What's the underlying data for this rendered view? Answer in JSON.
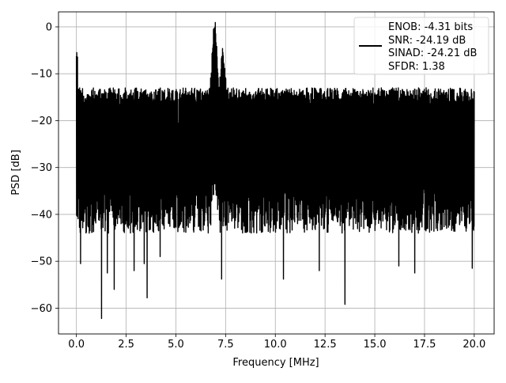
{
  "chart_data": {
    "type": "line",
    "title": "",
    "xlabel": "Frequency [MHz]",
    "ylabel": "PSD [dB]",
    "xlim": [
      -0.9,
      21.0
    ],
    "ylim": [
      -65.5,
      3.2
    ],
    "xticks": [
      0.0,
      2.5,
      5.0,
      7.5,
      10.0,
      12.5,
      15.0,
      17.5,
      20.0
    ],
    "xtick_labels": [
      "0.0",
      "2.5",
      "5.0",
      "7.5",
      "10.0",
      "12.5",
      "15.0",
      "17.5",
      "20.0"
    ],
    "yticks": [
      0,
      -10,
      -20,
      -30,
      -40,
      -50,
      -60
    ],
    "ytick_labels": [
      "0",
      "−10",
      "−20",
      "−30",
      "−40",
      "−50",
      "−60"
    ],
    "grid": true,
    "legend_placement": "upper-right",
    "legend_lines": [
      "ENOB: -4.31 bits",
      "SNR: -24.19 dB",
      "SINAD: -24.21 dB",
      "SFDR: 1.38"
    ],
    "series_color": "#000000",
    "noise_floor_upper_db": -13,
    "noise_floor_lower_db": -42,
    "peak": {
      "frequency_mhz": 6.95,
      "psd_db": 0.0
    },
    "spur": {
      "frequency_mhz": 7.35,
      "psd_db": -5.0
    },
    "low_freq_spike": {
      "frequency_mhz": 0.0,
      "psd_db": -5.2
    },
    "deep_dips": [
      {
        "frequency_mhz": 0.2,
        "psd_db": -50.5
      },
      {
        "frequency_mhz": 1.25,
        "psd_db": -62.2
      },
      {
        "frequency_mhz": 1.55,
        "psd_db": -52.5
      },
      {
        "frequency_mhz": 1.9,
        "psd_db": -56.0
      },
      {
        "frequency_mhz": 2.9,
        "psd_db": -52.0
      },
      {
        "frequency_mhz": 3.4,
        "psd_db": -50.5
      },
      {
        "frequency_mhz": 3.55,
        "psd_db": -57.8
      },
      {
        "frequency_mhz": 4.2,
        "psd_db": -49.0
      },
      {
        "frequency_mhz": 7.3,
        "psd_db": -53.8
      },
      {
        "frequency_mhz": 10.4,
        "psd_db": -53.8
      },
      {
        "frequency_mhz": 12.2,
        "psd_db": -52.0
      },
      {
        "frequency_mhz": 13.5,
        "psd_db": -59.2
      },
      {
        "frequency_mhz": 16.2,
        "psd_db": -51.0
      },
      {
        "frequency_mhz": 17.0,
        "psd_db": -52.5
      },
      {
        "frequency_mhz": 19.9,
        "psd_db": -51.5
      }
    ]
  }
}
